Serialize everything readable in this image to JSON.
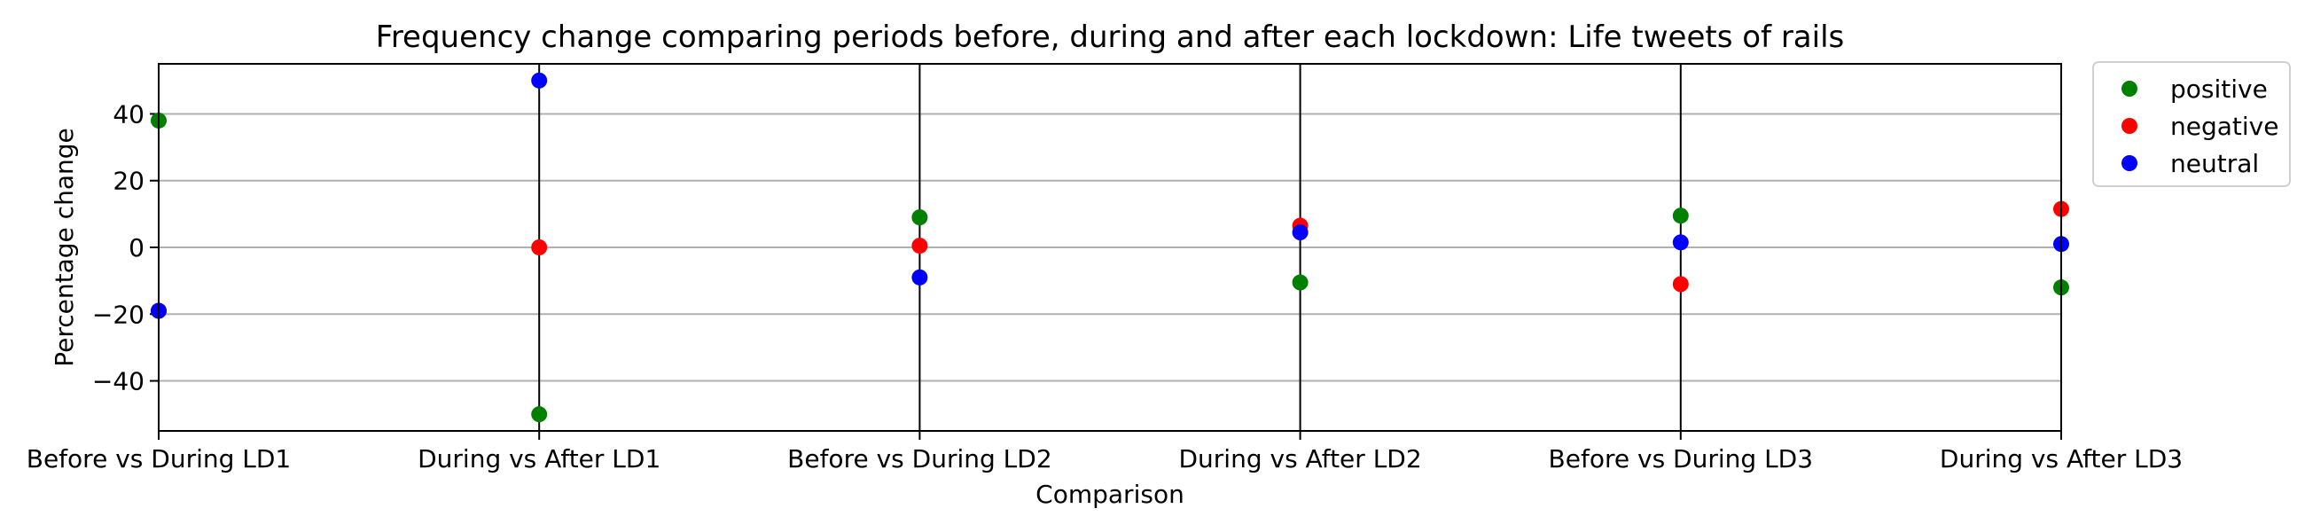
{
  "chart_data": {
    "type": "scatter",
    "title": "Frequency change comparing periods before, during and after each lockdown: Life tweets of rails",
    "xlabel": "Comparison",
    "ylabel": "Percentage change",
    "categories": [
      "Before vs During LD1",
      "During vs After LD1",
      "Before vs During LD2",
      "During vs After LD2",
      "Before vs During LD3",
      "During vs After LD3"
    ],
    "ylim": [
      -55,
      55
    ],
    "yticks": [
      -40,
      -20,
      0,
      20,
      40
    ],
    "grid": "horizontal",
    "vertical_lines_at": [
      1,
      2,
      3,
      4
    ],
    "legend_position": "outside-top-right",
    "series": [
      {
        "name": "positive",
        "color": "#008000",
        "values": [
          38,
          -50,
          9,
          -10.5,
          9.5,
          -12
        ]
      },
      {
        "name": "negative",
        "color": "#ff0000",
        "values": [
          -19,
          0,
          0.5,
          6.5,
          -11,
          11.5
        ]
      },
      {
        "name": "neutral",
        "color": "#0000ff",
        "values": [
          -19,
          50,
          -9,
          4.5,
          1.5,
          1
        ]
      }
    ]
  }
}
